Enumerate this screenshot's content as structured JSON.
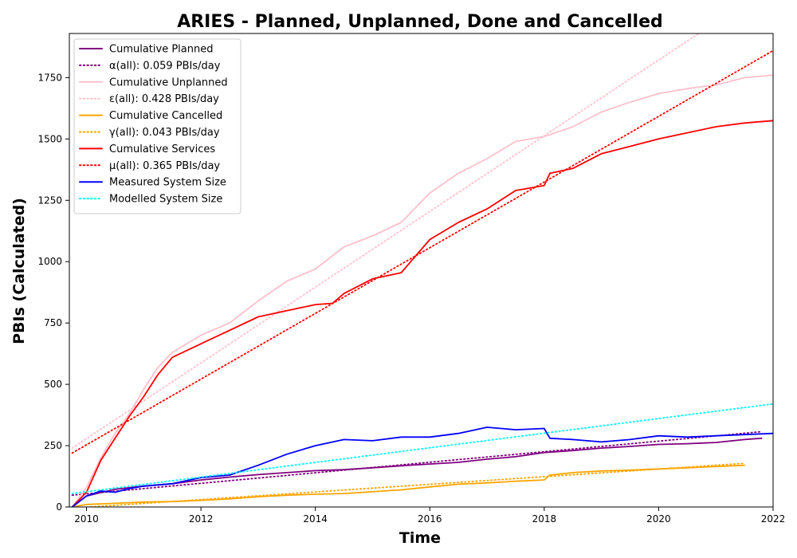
{
  "chart_data": {
    "type": "line",
    "title": "ARIES - Planned, Unplanned, Done  and Cancelled",
    "xlabel": "Time",
    "ylabel": "PBIs (Calculated)",
    "xlim": [
      2009.7,
      2022.0
    ],
    "ylim": [
      0,
      1930
    ],
    "x_ticks": [
      2010,
      2012,
      2014,
      2016,
      2018,
      2020,
      2022
    ],
    "x_tick_labels": [
      "2010",
      "2012",
      "2014",
      "2016",
      "2018",
      "2020",
      "2022"
    ],
    "y_ticks": [
      0,
      250,
      500,
      750,
      1000,
      1250,
      1500,
      1750
    ],
    "y_tick_labels": [
      "0",
      "250",
      "500",
      "750",
      "1000",
      "1250",
      "1500",
      "1750"
    ],
    "grid": false,
    "legend_position": "top-left",
    "series": [
      {
        "name": "Cumulative Planned",
        "color": "#800080",
        "style": "solid",
        "x": [
          2009.75,
          2010.0,
          2010.5,
          2011.0,
          2011.5,
          2012.0,
          2012.5,
          2013.0,
          2013.5,
          2014.0,
          2014.5,
          2015.0,
          2015.5,
          2016.0,
          2016.5,
          2017.0,
          2017.5,
          2018.0,
          2018.5,
          2019.0,
          2019.5,
          2020.0,
          2020.5,
          2021.0,
          2021.5,
          2021.8
        ],
        "y": [
          0,
          45,
          72,
          85,
          95,
          110,
          122,
          132,
          140,
          148,
          152,
          160,
          168,
          175,
          182,
          195,
          205,
          222,
          230,
          240,
          247,
          255,
          258,
          263,
          275,
          280
        ]
      },
      {
        "name": "α(all): 0.059 PBIs/day",
        "color": "#800080",
        "style": "dotted",
        "x": [
          2009.75,
          2021.8
        ],
        "y": [
          48,
          307
        ]
      },
      {
        "name": "Cumulative Unplanned",
        "color": "#ffc0cb",
        "style": "solid",
        "x": [
          2009.75,
          2010.0,
          2010.25,
          2010.5,
          2010.75,
          2011.0,
          2011.25,
          2011.5,
          2012.0,
          2012.5,
          2013.0,
          2013.5,
          2014.0,
          2014.5,
          2015.0,
          2015.5,
          2016.0,
          2016.5,
          2017.0,
          2017.5,
          2018.0,
          2018.5,
          2019.0,
          2019.5,
          2020.0,
          2020.5,
          2021.0,
          2021.5,
          2022.0
        ],
        "y": [
          0,
          80,
          200,
          300,
          380,
          480,
          570,
          630,
          700,
          750,
          840,
          920,
          970,
          1060,
          1105,
          1160,
          1280,
          1360,
          1420,
          1490,
          1510,
          1550,
          1610,
          1650,
          1685,
          1705,
          1720,
          1750,
          1760
        ]
      },
      {
        "name": "ε(all): 0.428 PBIs/day",
        "color": "#ffc0cb",
        "style": "dotted",
        "x": [
          2009.75,
          2020.7
        ],
        "y": [
          240,
          1930
        ]
      },
      {
        "name": "Cumulative Cancelled",
        "color": "#ffa500",
        "style": "solid",
        "x": [
          2009.75,
          2010.0,
          2010.5,
          2011.0,
          2011.5,
          2012.0,
          2012.5,
          2013.0,
          2013.5,
          2014.0,
          2014.5,
          2015.0,
          2015.5,
          2016.0,
          2016.5,
          2017.0,
          2017.5,
          2018.0,
          2018.1,
          2018.5,
          2019.0,
          2019.5,
          2020.0,
          2020.5,
          2021.0,
          2021.5
        ],
        "y": [
          0,
          10,
          15,
          20,
          22,
          27,
          33,
          42,
          48,
          52,
          55,
          62,
          70,
          82,
          93,
          98,
          105,
          110,
          130,
          140,
          147,
          150,
          155,
          160,
          165,
          170
        ]
      },
      {
        "name": "γ(all): 0.043 PBIs/day",
        "color": "#ffa500",
        "style": "dotted",
        "x": [
          2009.75,
          2021.5
        ],
        "y": [
          -5,
          178
        ]
      },
      {
        "name": "Cumulative Services",
        "color": "#ff0000",
        "style": "solid",
        "x": [
          2009.75,
          2010.0,
          2010.25,
          2010.5,
          2010.75,
          2011.0,
          2011.25,
          2011.5,
          2012.0,
          2012.5,
          2013.0,
          2013.5,
          2014.0,
          2014.3,
          2014.5,
          2015.0,
          2015.5,
          2016.0,
          2016.5,
          2017.0,
          2017.5,
          2018.0,
          2018.1,
          2018.5,
          2019.0,
          2019.5,
          2020.0,
          2020.5,
          2021.0,
          2021.5,
          2022.0
        ],
        "y": [
          0,
          60,
          190,
          280,
          370,
          450,
          540,
          610,
          665,
          720,
          775,
          800,
          825,
          830,
          870,
          930,
          955,
          1090,
          1160,
          1215,
          1290,
          1310,
          1360,
          1380,
          1440,
          1470,
          1500,
          1525,
          1550,
          1565,
          1575
        ]
      },
      {
        "name": "μ(all): 0.365 PBIs/day",
        "color": "#ff0000",
        "style": "dotted",
        "x": [
          2009.75,
          2022.0
        ],
        "y": [
          220,
          1860
        ]
      },
      {
        "name": "Measured System Size",
        "color": "#0000ff",
        "style": "solid",
        "x": [
          2009.75,
          2010.0,
          2010.25,
          2010.5,
          2010.75,
          2011.0,
          2011.5,
          2012.0,
          2012.5,
          2013.0,
          2013.5,
          2014.0,
          2014.5,
          2015.0,
          2015.5,
          2016.0,
          2016.5,
          2017.0,
          2017.5,
          2018.0,
          2018.1,
          2018.5,
          2019.0,
          2019.5,
          2020.0,
          2020.5,
          2021.0,
          2021.5,
          2022.0
        ],
        "y": [
          0,
          45,
          65,
          60,
          75,
          85,
          95,
          120,
          130,
          170,
          215,
          250,
          275,
          270,
          285,
          285,
          300,
          325,
          315,
          320,
          280,
          275,
          265,
          275,
          290,
          285,
          290,
          295,
          300
        ]
      },
      {
        "name": "Modelled System Size",
        "color": "#00ffff",
        "style": "dotted",
        "x": [
          2009.75,
          2022.0
        ],
        "y": [
          55,
          420
        ]
      }
    ]
  }
}
